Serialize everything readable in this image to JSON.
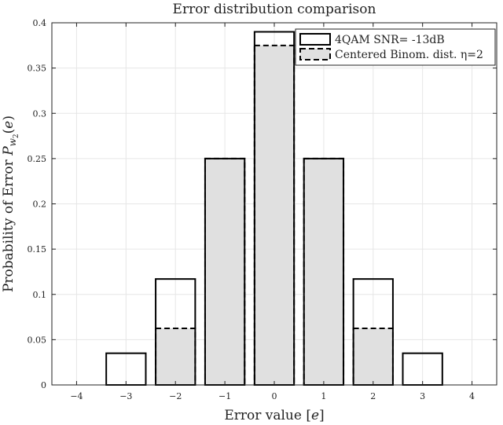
{
  "chart_data": {
    "type": "bar",
    "title": "Error distribution comparison",
    "xlabel": "Error value [e]",
    "ylabel": "Probability of Error P_{w_2}(e)",
    "xlim": [
      -4.5,
      4.5
    ],
    "ylim": [
      0,
      0.4
    ],
    "x_ticks": [
      -4,
      -3,
      -2,
      -1,
      0,
      1,
      2,
      3,
      4
    ],
    "y_ticks": [
      0,
      0.05,
      0.1,
      0.15,
      0.2,
      0.25,
      0.3,
      0.35,
      0.4
    ],
    "grid": true,
    "legend_position": "top-right",
    "categories": [
      -3,
      -2,
      -1,
      0,
      1,
      2,
      3
    ],
    "series": [
      {
        "name": "4QAM SNR= -13dB",
        "values": [
          0.035,
          0.117,
          0.25,
          0.39,
          0.25,
          0.117,
          0.035
        ],
        "fill": "#ffffff",
        "stroke": "#000000",
        "dash": "solid"
      },
      {
        "name": "Centered Binom. dist. η=2",
        "values": [
          0,
          0.0625,
          0.25,
          0.375,
          0.25,
          0.0625,
          0
        ],
        "fill": "#e0e0e0",
        "stroke": "#000000",
        "dash": "dashed"
      }
    ]
  }
}
